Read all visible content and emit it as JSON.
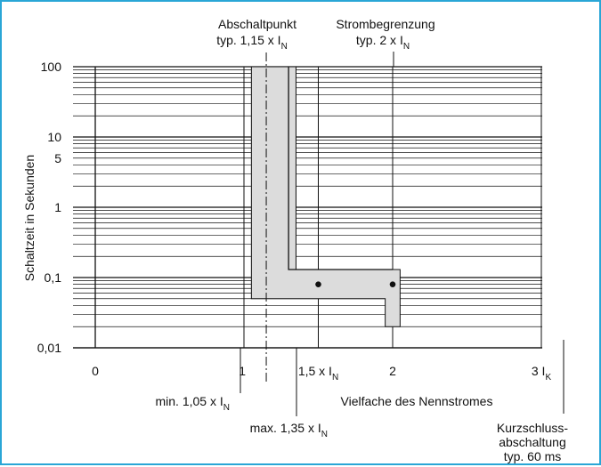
{
  "chart_data": {
    "type": "line",
    "ylabel": "Schaltzeit in Sekunden",
    "xlabel": "Vielfache des Nennstromes",
    "y_scale": "log",
    "ylim": [
      0.01,
      100
    ],
    "y_ticks": [
      {
        "value": 100,
        "label": "100"
      },
      {
        "value": 10,
        "label": "10"
      },
      {
        "value": 5,
        "label": "5"
      },
      {
        "value": 1,
        "label": "1"
      },
      {
        "value": 0.1,
        "label": "0,1"
      },
      {
        "value": 0.01,
        "label": "0,01"
      }
    ],
    "x_ticks": [
      {
        "value": 0,
        "label": "0",
        "sub": "",
        "align": "middle"
      },
      {
        "value": 1,
        "label": "1",
        "sub": "",
        "align": "end"
      },
      {
        "value": 1.5,
        "label": "1,5 x I",
        "sub": "N",
        "align": "middle"
      },
      {
        "value": 2,
        "label": "2",
        "sub": "",
        "align": "middle"
      },
      {
        "value": 3,
        "label": "3 I",
        "sub": "K",
        "align": "middle"
      }
    ],
    "band": [
      [
        1.05,
        100
      ],
      [
        1.35,
        100
      ],
      [
        1.35,
        0.13
      ],
      [
        2.05,
        0.13
      ],
      [
        2.05,
        0.02
      ],
      [
        1.95,
        0.02
      ],
      [
        1.95,
        0.05
      ],
      [
        1.05,
        0.05
      ]
    ],
    "center_line": [
      [
        1.3,
        100
      ],
      [
        1.3,
        0.13
      ],
      [
        2.0,
        0.13
      ]
    ],
    "dashdot_line": {
      "x": 1.15,
      "y_from": 100,
      "y_to": 0.01
    },
    "points": [
      [
        1.5,
        0.08
      ],
      [
        2.0,
        0.08
      ]
    ],
    "annotations": {
      "abschaltpunkt": {
        "line1": "Abschaltpunkt",
        "line2": "typ. 1,15 x I",
        "sub": "N"
      },
      "strombegrenzung": {
        "line1": "Strombegrenzung",
        "line2": "typ. 2 x I",
        "sub": "N"
      },
      "min": {
        "text": "min. 1,05 x I",
        "sub": "N"
      },
      "max": {
        "text": "max. 1,35 x I",
        "sub": "N"
      },
      "kurzschluss": {
        "line1": "Kurzschluss-",
        "line2": "abschaltung",
        "line3": "typ. 60 ms"
      }
    },
    "colors": {
      "band": "#dcdcdc",
      "frame": "#2aa6d6",
      "line": "#111111"
    }
  }
}
